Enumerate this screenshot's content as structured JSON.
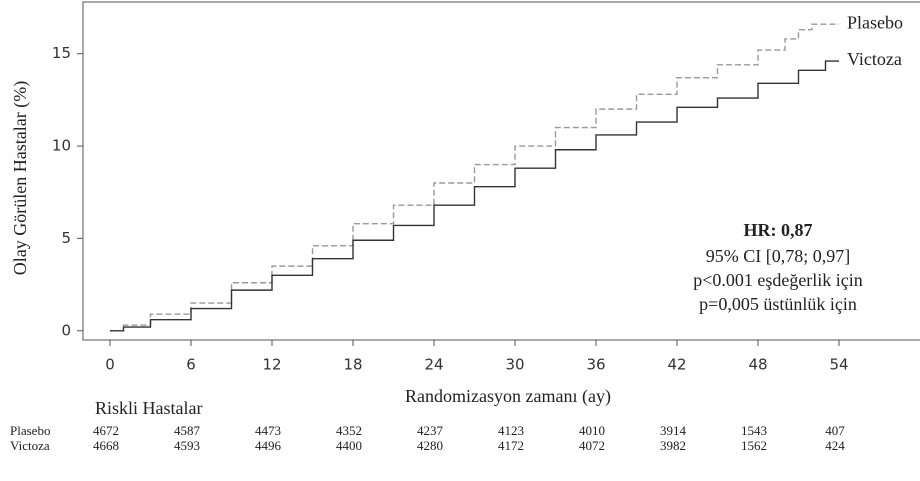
{
  "chart_data": {
    "type": "step",
    "y_label": "Olay Görülen Hastalar (%)",
    "x_label": "Randomizasyon zamanı (ay)",
    "xlim": [
      -2,
      60
    ],
    "ylim": [
      -0.5,
      17.8
    ],
    "xticks": [
      0,
      6,
      12,
      18,
      24,
      30,
      36,
      42,
      48,
      54
    ],
    "yticks": [
      0,
      5,
      10,
      15
    ],
    "series": [
      {
        "name": "Plasebo",
        "color": "#999999",
        "dash": true,
        "x": [
          0,
          1,
          3,
          6,
          9,
          12,
          15,
          18,
          21,
          24,
          27,
          30,
          33,
          36,
          39,
          42,
          45,
          48,
          50,
          51,
          52,
          54
        ],
        "values": [
          0,
          0.3,
          0.9,
          1.5,
          2.6,
          3.5,
          4.6,
          5.8,
          6.8,
          8.0,
          9.0,
          10.0,
          11.0,
          12.0,
          12.8,
          13.7,
          14.4,
          15.2,
          15.8,
          16.3,
          16.6,
          16.6
        ]
      },
      {
        "name": "Victoza",
        "color": "#333333",
        "dash": false,
        "x": [
          0,
          1,
          3,
          6,
          9,
          12,
          15,
          18,
          21,
          24,
          27,
          30,
          33,
          36,
          39,
          42,
          45,
          48,
          51,
          53,
          54
        ],
        "values": [
          0,
          0.2,
          0.6,
          1.2,
          2.2,
          3.0,
          3.9,
          4.9,
          5.7,
          6.8,
          7.8,
          8.8,
          9.8,
          10.6,
          11.3,
          12.1,
          12.6,
          13.4,
          14.1,
          14.6,
          14.6
        ]
      }
    ],
    "annotation": {
      "title": "HR: 0,87",
      "lines": [
        "95% CI [0,78; 0,97]",
        "p<0.001 eşdeğerlik için",
        "p=0,005 üstünlük için"
      ]
    },
    "risk_table": {
      "title": "Riskli Hastalar",
      "rows": [
        {
          "name": "Plasebo",
          "values": [
            4672,
            4587,
            4473,
            4352,
            4237,
            4123,
            4010,
            3914,
            1543,
            407
          ]
        },
        {
          "name": "Victoza",
          "values": [
            4668,
            4593,
            4496,
            4400,
            4280,
            4172,
            4072,
            3982,
            1562,
            424
          ]
        }
      ]
    }
  }
}
